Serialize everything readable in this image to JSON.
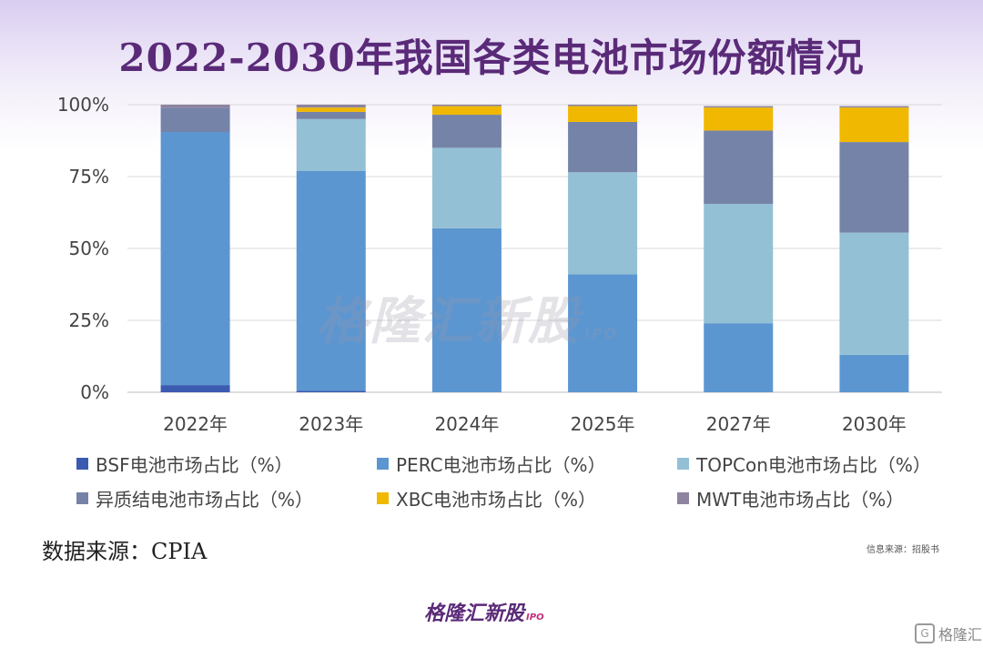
{
  "title": "2022-2030年我国各类电池市场份额情况",
  "colors": {
    "BSF": "#3b5bb0",
    "PERC": "#5b96d1",
    "TOPCon": "#93c0d4",
    "HJT": "#7683a8",
    "XBC": "#f0b800",
    "MWT": "#8e84a0"
  },
  "chart_data": {
    "type": "bar",
    "stacked": true,
    "categories": [
      "2022年",
      "2023年",
      "2024年",
      "2025年",
      "2027年",
      "2030年"
    ],
    "y_ticks": [
      "0%",
      "25%",
      "50%",
      "75%",
      "100%"
    ],
    "ylim": [
      0,
      100
    ],
    "grid": true,
    "legend_position": "bottom",
    "series": [
      {
        "key": "BSF",
        "name": "BSF电池市场占比（%）",
        "values": [
          2.5,
          0.5,
          0,
          0,
          0,
          0
        ]
      },
      {
        "key": "PERC",
        "name": "PERC电池市场占比（%）",
        "values": [
          88,
          76.5,
          57,
          41,
          24,
          13
        ]
      },
      {
        "key": "TOPCon",
        "name": "TOPCon电池市场占比（%）",
        "values": [
          0,
          18,
          28,
          35.5,
          41.5,
          42.5
        ]
      },
      {
        "key": "HJT",
        "name": "异质结电池市场占比（%）",
        "values": [
          8.5,
          2.5,
          11.5,
          17.5,
          25.5,
          31.5
        ]
      },
      {
        "key": "XBC",
        "name": "XBC电池市场占比（%）",
        "values": [
          0,
          1.5,
          3,
          5.5,
          8,
          12
        ]
      },
      {
        "key": "MWT",
        "name": "MWT电池市场占比（%）",
        "values": [
          1,
          1,
          0.5,
          0.5,
          0.5,
          0.5
        ]
      }
    ]
  },
  "legend_order": [
    "BSF",
    "PERC",
    "TOPCon",
    "HJT",
    "XBC",
    "MWT"
  ],
  "source_text": "数据来源：CPIA",
  "credit_text": "信息来源：招股书",
  "watermark": {
    "text": "格隆汇新股",
    "suffix": "IPO"
  },
  "corner_logo": {
    "mark": "G",
    "text": "格隆汇"
  }
}
